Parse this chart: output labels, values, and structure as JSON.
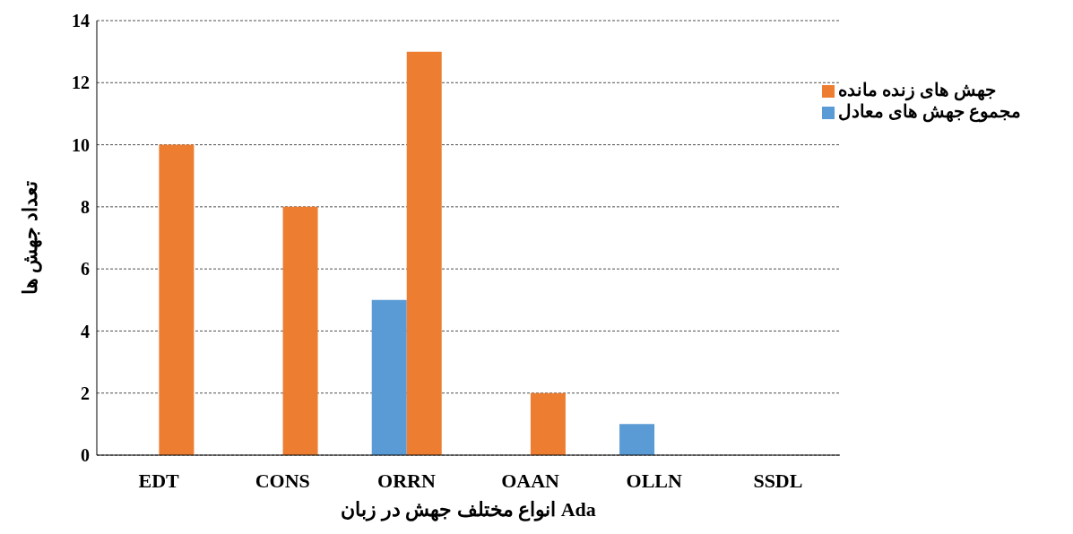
{
  "chart_data": {
    "type": "bar",
    "xlabel": "انواع مختلف جهش در زبان Ada",
    "ylabel": "تعداد جهش ها",
    "categories": [
      "EDT",
      "CONS",
      "ORRN",
      "OAAN",
      "OLLN",
      "SSDL"
    ],
    "series": [
      {
        "name": "مجموع جهش های معادل",
        "color": "#5b9bd5",
        "values": [
          0,
          0,
          5,
          0,
          1,
          0
        ]
      },
      {
        "name": "جهش های زنده مانده",
        "color": "#ed7d31",
        "values": [
          10,
          8,
          13,
          2,
          0,
          0
        ]
      }
    ],
    "ylim": [
      0,
      14
    ],
    "yticks": [
      0,
      2,
      4,
      6,
      8,
      10,
      12,
      14
    ],
    "grid": "y",
    "legend": "top right"
  }
}
